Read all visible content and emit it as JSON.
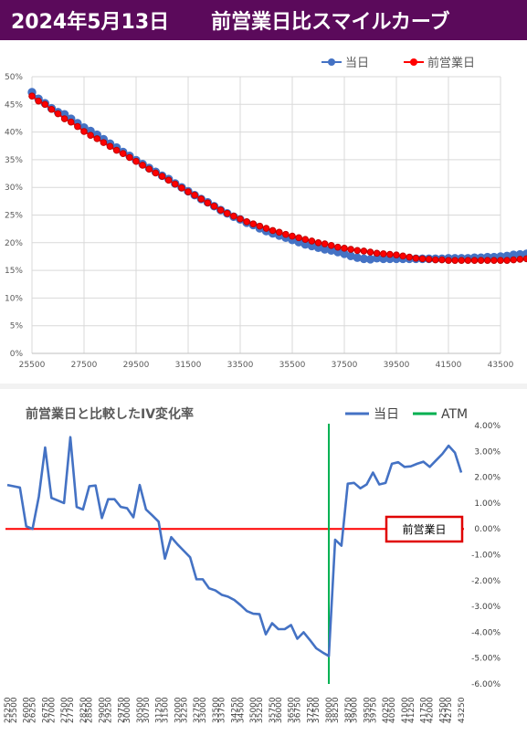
{
  "header": {
    "date": "2024年5月13日",
    "title": "前営業日比スマイルカーブ"
  },
  "colors": {
    "header_bg": "#5b0a5b",
    "today": "#4472c4",
    "prev": "#ff0000",
    "atm": "#00b050",
    "zero_line": "#ff0000",
    "box_border": "#e00000"
  },
  "chart_data": [
    {
      "type": "line",
      "title": "",
      "xlabel": "",
      "ylabel": "",
      "xlim": [
        25500,
        43500
      ],
      "ylim": [
        0,
        0.5
      ],
      "x_ticks": [
        "25500",
        "27500",
        "29500",
        "31500",
        "33500",
        "35500",
        "37500",
        "39500",
        "41500",
        "43500"
      ],
      "y_ticks": [
        "0%",
        "5%",
        "10%",
        "15%",
        "20%",
        "25%",
        "30%",
        "35%",
        "40%",
        "45%",
        "50%"
      ],
      "grid": true,
      "legend_position": "top-right",
      "series": [
        {
          "name": "当日",
          "color": "#4472c4",
          "x_start": 25500,
          "x_step": 250,
          "values": [
            0.472,
            0.46,
            0.452,
            0.443,
            0.436,
            0.432,
            0.424,
            0.416,
            0.408,
            0.402,
            0.395,
            0.387,
            0.379,
            0.372,
            0.364,
            0.357,
            0.349,
            0.342,
            0.335,
            0.328,
            0.321,
            0.315,
            0.307,
            0.3,
            0.293,
            0.286,
            0.279,
            0.273,
            0.266,
            0.259,
            0.253,
            0.247,
            0.242,
            0.236,
            0.232,
            0.226,
            0.221,
            0.217,
            0.213,
            0.209,
            0.205,
            0.201,
            0.197,
            0.194,
            0.191,
            0.188,
            0.186,
            0.183,
            0.18,
            0.176,
            0.173,
            0.171,
            0.17
          ]
        },
        {
          "name": "前営業日",
          "color": "#ff0000",
          "x_start": 25500,
          "x_step": 250,
          "values": [
            0.465,
            0.456,
            0.45,
            0.441,
            0.433,
            0.424,
            0.418,
            0.41,
            0.401,
            0.394,
            0.388,
            0.381,
            0.374,
            0.367,
            0.361,
            0.354,
            0.347,
            0.34,
            0.333,
            0.326,
            0.32,
            0.313,
            0.306,
            0.299,
            0.292,
            0.286,
            0.279,
            0.272,
            0.266,
            0.259,
            0.253,
            0.248,
            0.243,
            0.238,
            0.234,
            0.23,
            0.226,
            0.222,
            0.219,
            0.215,
            0.212,
            0.209,
            0.206,
            0.203,
            0.2,
            0.198,
            0.195,
            0.192,
            0.19,
            0.188,
            0.186,
            0.185,
            0.183,
            0.181,
            0.18,
            0.179,
            0.178,
            0.176,
            0.174,
            0.172,
            0.171,
            0.17,
            0.169,
            0.169,
            0.168,
            0.168,
            0.168,
            0.168,
            0.168,
            0.168,
            0.168,
            0.168,
            0.168,
            0.168,
            0.169,
            0.17,
            0.171,
            0.172,
            0.173
          ]
        },
        {
          "name": "当日",
          "legend_hidden": true,
          "color": "#4472c4",
          "x_start": 38750,
          "x_step": 250,
          "values": [
            0.172,
            0.171,
            0.171,
            0.171,
            0.171,
            0.171,
            0.171,
            0.171,
            0.171,
            0.171,
            0.171,
            0.172,
            0.172,
            0.172,
            0.172,
            0.173,
            0.173,
            0.174,
            0.174,
            0.175,
            0.176,
            0.178,
            0.179,
            0.18
          ]
        }
      ]
    },
    {
      "type": "line",
      "title": "前営業日と比較したIV変化率",
      "xlabel": "",
      "ylabel": "",
      "xlim": [
        25250,
        43250
      ],
      "ylim": [
        -0.06,
        0.04
      ],
      "x_ticks": [
        "25250",
        "25500",
        "26000",
        "26250",
        "26750",
        "27000",
        "27500",
        "27750",
        "28250",
        "28500",
        "29000",
        "29250",
        "29750",
        "30000",
        "30500",
        "30750",
        "31250",
        "31500",
        "32000",
        "32250",
        "32750",
        "33000",
        "33500",
        "33750",
        "34250",
        "34500",
        "35000",
        "35250",
        "35750",
        "36000",
        "36500",
        "36750",
        "37250",
        "37500",
        "38000",
        "38250",
        "38750",
        "39000",
        "39500",
        "39750",
        "40250",
        "40500",
        "41000",
        "41250",
        "41750",
        "42000",
        "42500",
        "42750",
        "43250"
      ],
      "y_ticks": [
        "4.00%",
        "3.00%",
        "2.00%",
        "1.00%",
        "0.00%",
        "-1.00%",
        "-2.00%",
        "-3.00%",
        "-4.00%",
        "-5.00%",
        "-6.00%"
      ],
      "grid": false,
      "legend_position": "top-right",
      "atm": 38000,
      "annotation": "前営業日",
      "series": [
        {
          "name": "当日",
          "color": "#4472c4",
          "x_start": 25250,
          "x_step": 250,
          "values": [
            0.017,
            0.0165,
            0.016,
            0.001,
            0.0,
            0.0125,
            0.0315,
            0.012,
            0.011,
            0.01,
            0.0355,
            0.0085,
            0.0075,
            0.0165,
            0.0168,
            0.0042,
            0.0115,
            0.0115,
            0.0085,
            0.008,
            0.0045,
            0.017,
            0.0075,
            0.0052,
            0.0028,
            -0.0115,
            -0.0032,
            -0.006,
            -0.0085,
            -0.011,
            -0.0195,
            -0.0195,
            -0.023,
            -0.0238,
            -0.0255,
            -0.0262,
            -0.0275,
            -0.0295,
            -0.0318,
            -0.0328,
            -0.033,
            -0.0408,
            -0.0365,
            -0.0388,
            -0.0388,
            -0.0372,
            -0.0425,
            -0.04,
            -0.043,
            -0.0462,
            -0.0478,
            -0.0492,
            -0.0042,
            -0.0065,
            0.0175,
            0.0178,
            0.0157,
            0.0172,
            0.0218,
            0.0172,
            0.0178,
            0.0252,
            0.0258,
            0.024,
            0.0242,
            0.0252,
            0.026,
            0.024,
            0.0265,
            0.029,
            0.0322,
            0.0295,
            0.0218
          ]
        }
      ]
    }
  ],
  "legend2": {
    "today": "当日",
    "atm": "ATM"
  }
}
